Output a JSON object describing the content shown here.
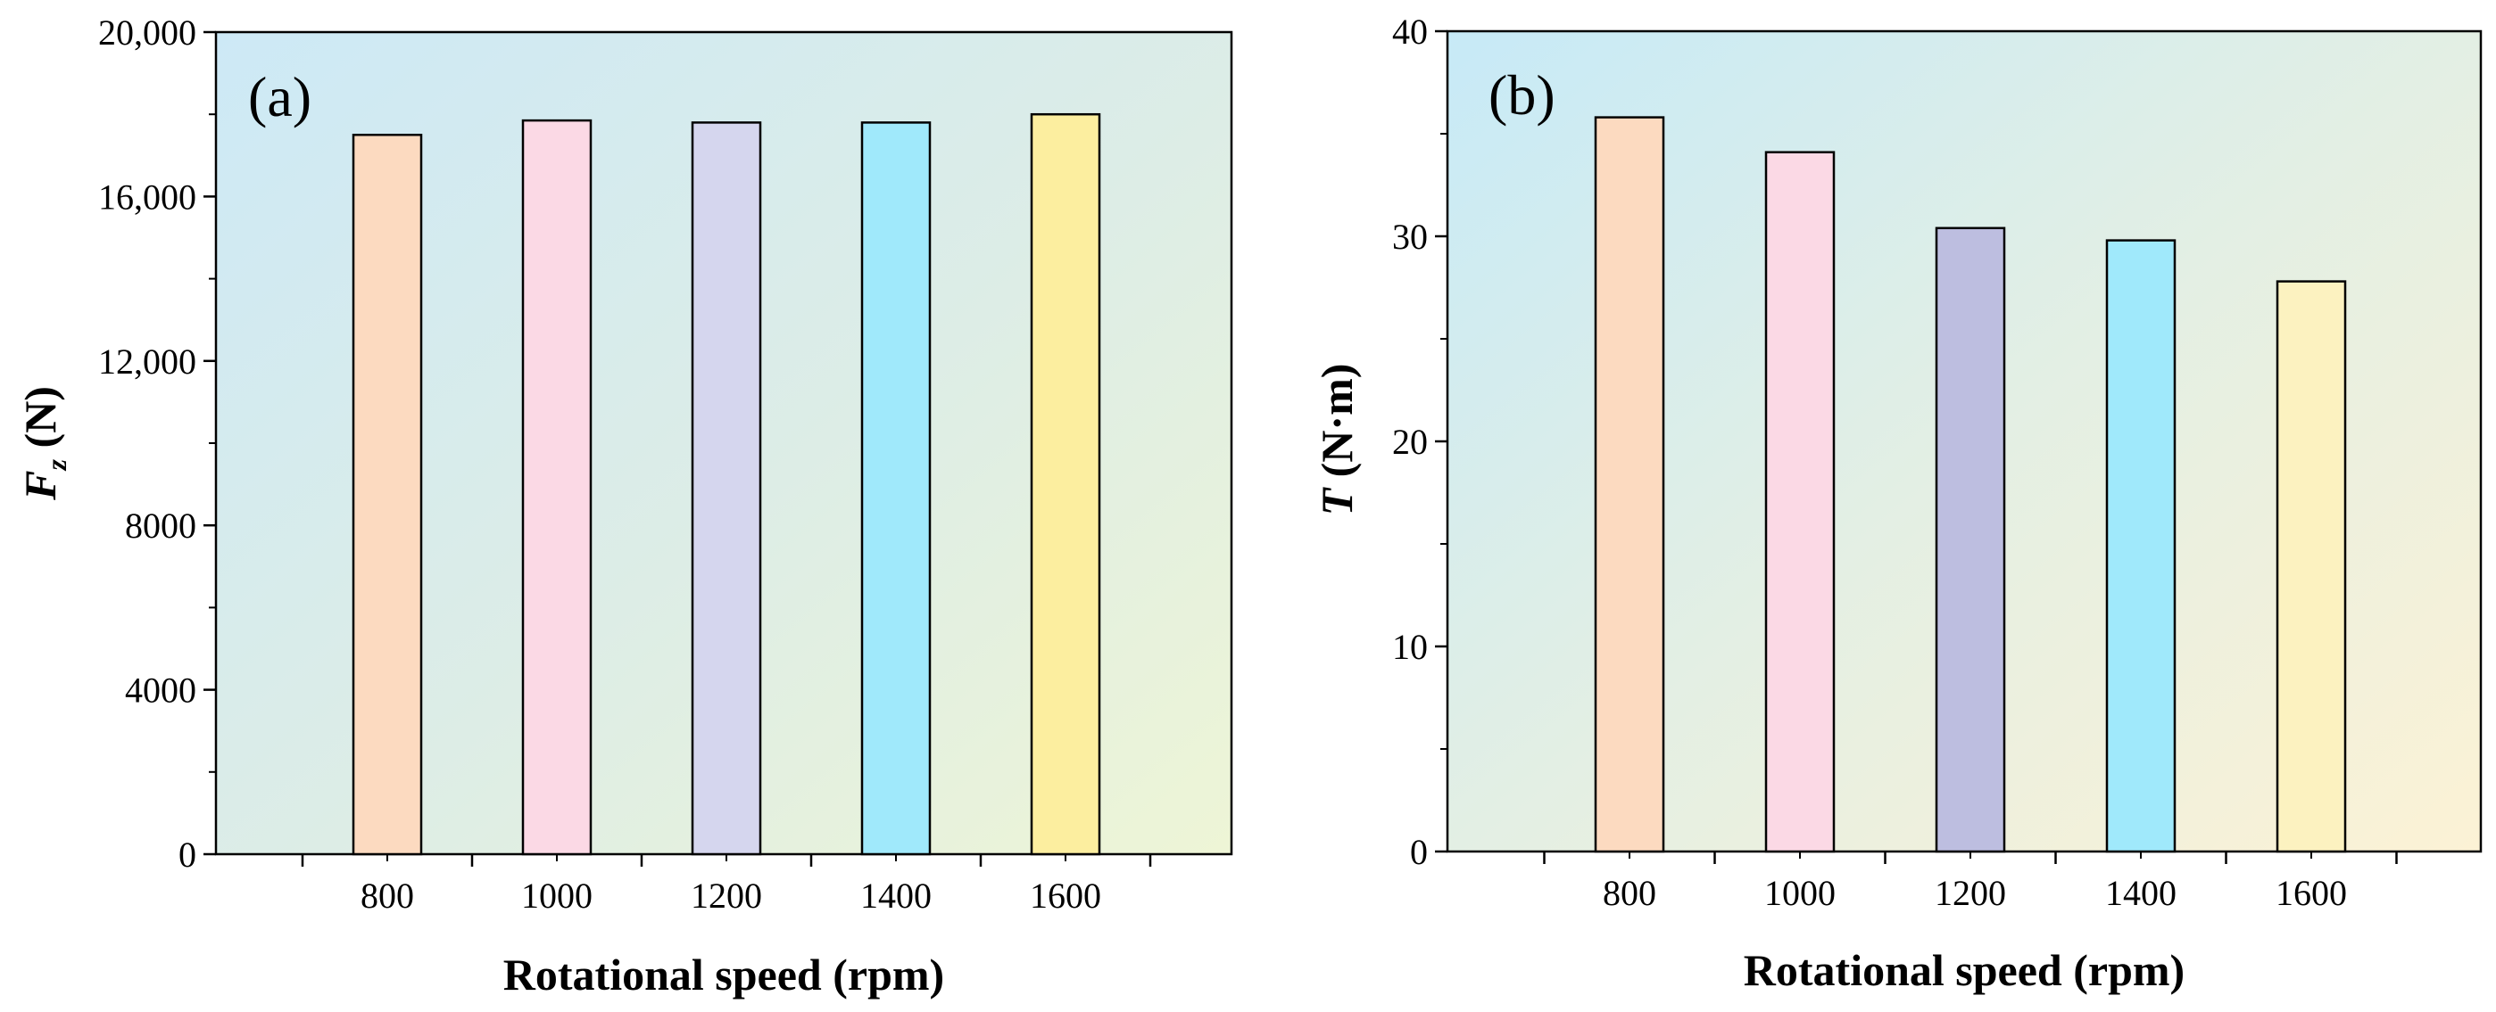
{
  "chart_data": [
    {
      "panel": "(a)",
      "type": "bar",
      "title": "",
      "xlabel": "Rotational speed (rpm)",
      "ylabel": "F",
      "ylabel_subscript": "z",
      "ylabel_unit": " (N)",
      "categories": [
        "800",
        "1000",
        "1200",
        "1400",
        "1600"
      ],
      "values": [
        17500,
        17850,
        17800,
        17800,
        18000
      ],
      "ylim": [
        0,
        20000
      ],
      "yticks": [
        0,
        4000,
        8000,
        12000,
        16000,
        20000
      ],
      "ytick_labels": [
        "0",
        "4000",
        "8000",
        "12,000",
        "16,000",
        "20,000"
      ],
      "bar_colors": [
        "#FCDAC0",
        "#FBD9E5",
        "#D5D6EE",
        "#A0E9FB",
        "#FCEE9F"
      ],
      "grid": false
    },
    {
      "panel": "(b)",
      "type": "bar",
      "title": "",
      "xlabel": "Rotational speed (rpm)",
      "ylabel": "T",
      "ylabel_unit": " (N·m)",
      "categories": [
        "800",
        "1000",
        "1200",
        "1400",
        "1600"
      ],
      "values": [
        35.8,
        34.1,
        30.4,
        29.8,
        27.8
      ],
      "ylim": [
        0,
        40
      ],
      "yticks": [
        0,
        10,
        20,
        30,
        40
      ],
      "ytick_labels": [
        "0",
        "10",
        "20",
        "30",
        "40"
      ],
      "bar_colors": [
        "#FCDAC0",
        "#FBD9E5",
        "#BDBEE0",
        "#A0E9FB",
        "#FCF2C0"
      ],
      "grid": false
    }
  ]
}
